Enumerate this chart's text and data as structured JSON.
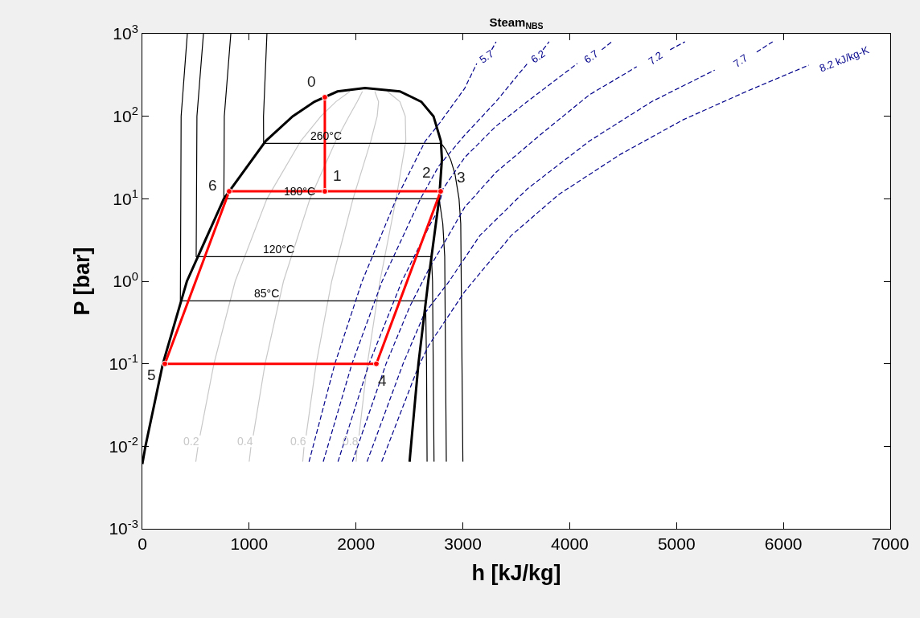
{
  "chart_data": {
    "type": "line",
    "title": "Steam$_{NBS}$",
    "xlabel": "h [kJ/kg]",
    "ylabel": "P [bar]",
    "xlim": [
      0,
      7000
    ],
    "xticks": [
      0,
      1000,
      2000,
      3000,
      4000,
      5000,
      6000,
      7000
    ],
    "ylim": [
      0.001,
      1000
    ],
    "log": "y",
    "yticks": [
      {
        "value": 0.001,
        "label": "10$^{-3}$"
      },
      {
        "value": 0.01,
        "label": "10$^{-2}$"
      },
      {
        "value": 0.1,
        "label": "10$^{-1}$"
      },
      {
        "value": 1,
        "label": "10$^{0}$"
      },
      {
        "value": 10,
        "label": "10$^{1}$"
      },
      {
        "value": 100,
        "label": "10$^{2}$"
      },
      {
        "value": 1000,
        "label": "10$^{3}$"
      }
    ],
    "legend": false,
    "marker": "none",
    "line_style": "solid",
    "series": [
      {
        "name": "0.2",
        "color": "#c8c8c8",
        "x": [
          500,
          520,
          530,
          540,
          670,
          869,
          1166,
          1482,
          1671,
          1811,
          1943
        ],
        "values": [
          0.0065,
          0.0098,
          null,
          0.0135,
          0.1,
          1,
          10,
          50,
          100,
          150,
          200
        ]
      },
      {
        "name": "0.4",
        "color": "#c8c8c8",
        "x": [
          1000,
          1016,
          1030,
          1038,
          1149,
          1321,
          1569,
          1810,
          1934,
          2011,
          2060
        ],
        "values": [
          0.0065,
          0.0098,
          null,
          0.0135,
          0.1,
          1,
          10,
          50,
          100,
          150,
          200
        ]
      },
      {
        "name": "0.6",
        "color": "#c8c8c8",
        "x": [
          1501,
          1513,
          1525,
          1533,
          1627,
          1772,
          1972,
          2138,
          2198,
          2211,
          2176
        ],
        "values": [
          0.0065,
          0.0098,
          null,
          0.0135,
          0.1,
          1,
          10,
          50,
          100,
          150,
          200
        ]
      },
      {
        "name": "0.8",
        "color": "#c8c8c8",
        "x": [
          2001,
          2010,
          2020,
          2028,
          2106,
          2224,
          2375,
          2466,
          2461,
          2411,
          2293
        ],
        "values": [
          0.0065,
          0.0098,
          null,
          0.0135,
          0.1,
          1,
          10,
          50,
          100,
          150,
          200
        ]
      },
      {
        "name": "85°C",
        "color": "#000000",
        "x": [
          421,
          363,
          356,
          2651,
          2660,
          2665
        ],
        "values": [
          1000,
          100,
          0.578,
          0.578,
          0.1,
          0.0065
        ]
      },
      {
        "name": "120°C",
        "color": "#000000",
        "x": [
          572,
          511,
          504,
          2706,
          2716,
          2730
        ],
        "values": [
          1000,
          100,
          1.985,
          1.985,
          1,
          0.0065
        ]
      },
      {
        "name": "180°C",
        "color": "#000000",
        "x": [
          828,
          767,
          763,
          2778,
          2812,
          2830,
          2845
        ],
        "values": [
          1000,
          100,
          10,
          10,
          5,
          2,
          0.0065
        ]
      },
      {
        "name": "260°C",
        "color": "#000000",
        "x": [
          1166,
          1134,
          1135,
          2797,
          2837,
          2885,
          2926,
          2964,
          2980,
          3000
        ],
        "values": [
          1000,
          100,
          46.9,
          46.9,
          40,
          30,
          20,
          10,
          5,
          0.0065
        ]
      },
      {
        "name": "5.7",
        "color": "#00008b",
        "line_style": "dashed",
        "x": [
          1560,
          1802,
          2057,
          2377,
          2648,
          2784,
          3017,
          3130,
          3220,
          3270,
          3311
        ],
        "values": [
          0.0065,
          0.1,
          1,
          10,
          50,
          83,
          218,
          436,
          null,
          640,
          800
        ]
      },
      {
        "name": "6.2",
        "color": "#00008b",
        "line_style": "dashed",
        "x": [
          1693,
          1962,
          2244,
          2603,
          2775,
          3017,
          3311,
          3604,
          3700,
          3750,
          3807
        ],
        "values": [
          0.0065,
          0.1,
          1,
          10,
          25,
          59,
          151,
          436,
          null,
          640,
          800
        ]
      },
      {
        "name": "6.7",
        "color": "#00008b",
        "line_style": "dashed",
        "x": [
          1831,
          2122,
          2429,
          2698,
          2763,
          2814,
          3017,
          3311,
          3604,
          4071,
          4200,
          4300,
          4394
        ],
        "values": [
          0.0065,
          0.1,
          1,
          5,
          7,
          13.2,
          31.6,
          76,
          151,
          436,
          null,
          640,
          800
        ]
      },
      {
        "name": "7.2",
        "color": "#00008b",
        "line_style": "dashed",
        "x": [
          1966,
          2281,
          2505,
          2693,
          2814,
          3017,
          3311,
          3747,
          4184,
          4627,
          4800,
          4940,
          5079
        ],
        "values": [
          0.0065,
          0.1,
          0.5,
          1.5,
          2.75,
          7.9,
          21,
          63,
          182,
          398,
          null,
          640,
          800
        ]
      },
      {
        "name": "7.7",
        "color": "#00008b",
        "line_style": "dashed",
        "x": [
          2103,
          2440,
          2637,
          2867,
          3160,
          3604,
          4184,
          4770,
          5357,
          5600,
          5750,
          5899
        ],
        "values": [
          0.0065,
          0.1,
          0.4,
          0.98,
          3.6,
          13.2,
          50,
          151,
          363,
          null,
          600,
          800
        ]
      },
      {
        "name": "8.2 kJ/kg-K",
        "color": "#00008b",
        "line_style": "dashed",
        "x": [
          2240,
          2580,
          2679,
          3017,
          3454,
          3898,
          4477,
          5064,
          5651,
          6238
        ],
        "values": [
          0.0065,
          0.09,
          0.166,
          0.75,
          3.6,
          11.3,
          34.7,
          91,
          199,
          417
        ]
      },
      {
        "color": "#000000",
        "x": [
          0,
          29,
          192,
          417,
          763,
          1154,
          1408,
          1611,
          1826,
          2084,
          2410,
          2611,
          2725,
          2794,
          2804,
          2778,
          2676,
          2584,
          2514,
          2501
        ],
        "values": [
          0.0061,
          0.01,
          0.1,
          1,
          10,
          50,
          100,
          150,
          200,
          220.6,
          200,
          150,
          100,
          50,
          30,
          10,
          1,
          0.1,
          0.01,
          0.0065
        ]
      },
      {
        "color": "#ff0000",
        "marker": "circle",
        "x": [
          1708,
          1708,
          813,
          211,
          2190,
          2792,
          1708
        ],
        "values": [
          170,
          12.3,
          12.3,
          0.1,
          0.1,
          12.3,
          12.3
        ]
      }
    ],
    "annotations": [
      {
        "text": "0",
        "x": 1708,
        "y": 170
      },
      {
        "text": "1",
        "x": 1708,
        "y": 12.3
      },
      {
        "text": "2",
        "x": 2778,
        "y": 12.3
      },
      {
        "text": "3",
        "x": 2792,
        "y": 12.3
      },
      {
        "text": "4",
        "x": 2190,
        "y": 0.1
      },
      {
        "text": "5",
        "x": 211,
        "y": 0.1
      },
      {
        "text": "6",
        "x": 813,
        "y": 12.3
      }
    ]
  }
}
